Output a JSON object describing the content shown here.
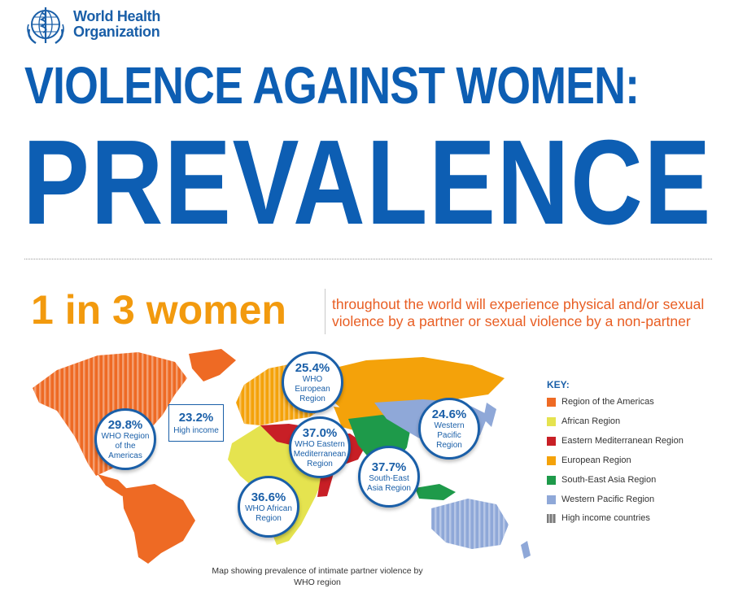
{
  "organization": {
    "line1": "World Health",
    "line2": "Organization"
  },
  "title": {
    "line1": "VIOLENCE AGAINST WOMEN:",
    "line2": "PREVALENCE"
  },
  "headline": {
    "stat": "1 in 3 women",
    "text": "throughout the world will experience physical and/or sexual violence by a partner or sexual violence by a non-partner"
  },
  "regions": [
    {
      "pct": "29.8%",
      "label": "WHO Region of the Americas"
    },
    {
      "pct": "25.4%",
      "label": "WHO European Region"
    },
    {
      "pct": "37.0%",
      "label": "WHO Eastern Mediterranean Region"
    },
    {
      "pct": "36.6%",
      "label": "WHO African Region"
    },
    {
      "pct": "37.7%",
      "label": "South-East Asia Region"
    },
    {
      "pct": "24.6%",
      "label": "Western Pacific Region"
    }
  ],
  "high_income": {
    "pct": "23.2%",
    "label": "High income"
  },
  "key": {
    "title": "KEY:",
    "items": [
      {
        "label": "Region of the Americas",
        "color": "#ee6a24"
      },
      {
        "label": "African Region",
        "color": "#e5e34f"
      },
      {
        "label": "Eastern Mediterranean Region",
        "color": "#c81f26"
      },
      {
        "label": "European Region",
        "color": "#f4a20a"
      },
      {
        "label": "South-East Asia Region",
        "color": "#1e9a4a"
      },
      {
        "label": "Western Pacific Region",
        "color": "#8fa8d8"
      },
      {
        "label": "High income countries",
        "color": "#7a7a7a"
      }
    ]
  },
  "caption": "Map showing prevalence of intimate partner violence by WHO region"
}
